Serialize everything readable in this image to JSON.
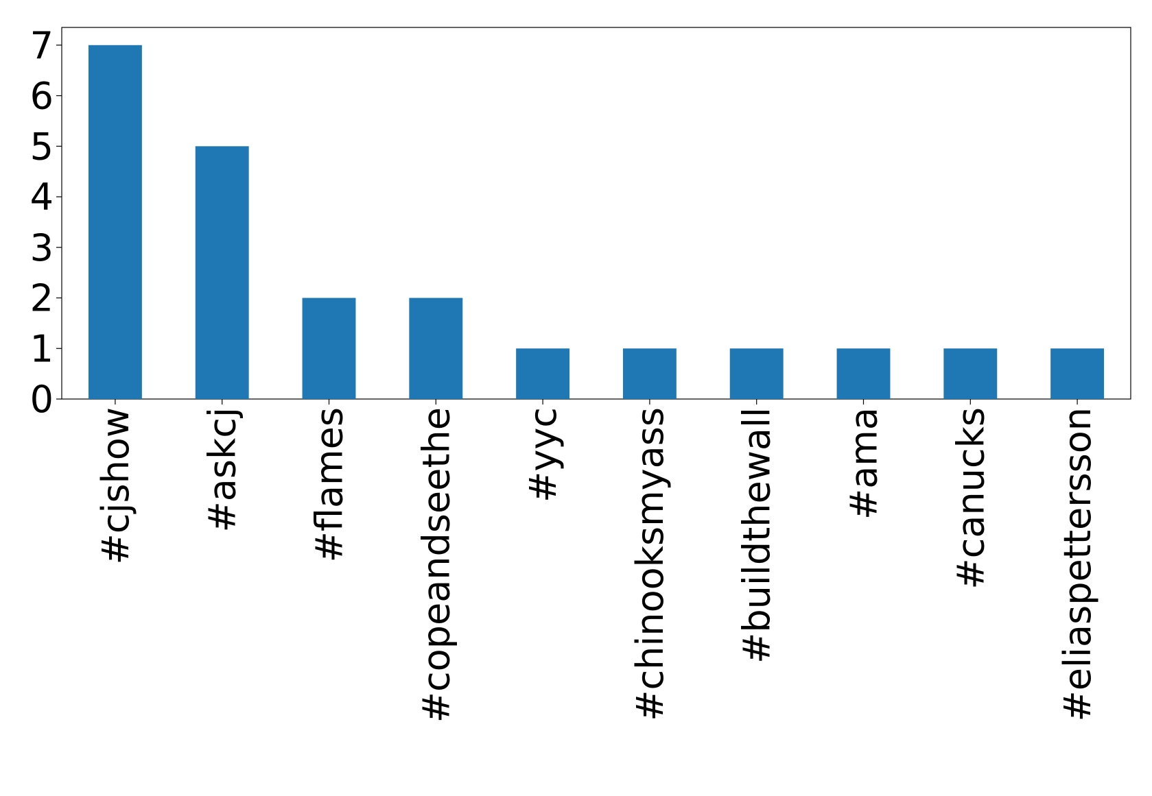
{
  "chart_data": {
    "type": "bar",
    "categories": [
      "#cjshow",
      "#askcj",
      "#flames",
      "#copeandseethe",
      "#yyc",
      "#chinooksmyass",
      "#buildthewall",
      "#ama",
      "#canucks",
      "#eliaspettersson"
    ],
    "values": [
      7,
      5,
      2,
      2,
      1,
      1,
      1,
      1,
      1,
      1
    ],
    "color": "#1f77b4",
    "ylim": [
      0,
      7.35
    ],
    "yticks": [
      0,
      1,
      2,
      3,
      4,
      5,
      6,
      7
    ]
  }
}
